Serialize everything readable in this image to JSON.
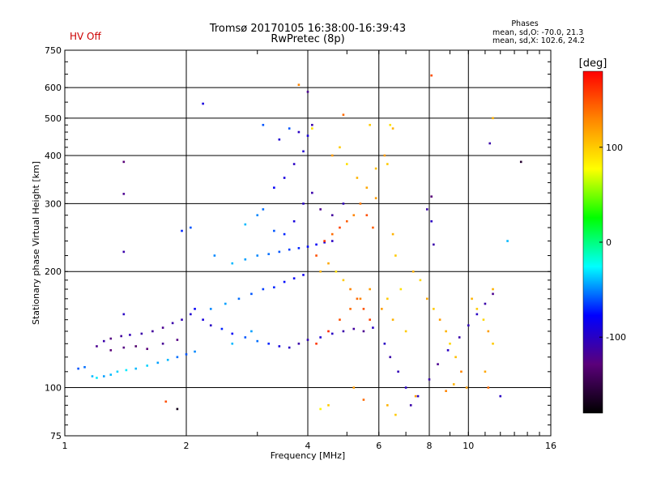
{
  "status_text": "HV Off",
  "status_color": "#cc0000",
  "chart_data": {
    "type": "scatter",
    "title": "Tromsø 20170105 16:38:00-16:39:43",
    "subtitle": "RwPretec (8p)",
    "stats": {
      "heading": "Phases",
      "line1": "mean, sd,O: -70.0, 21.3",
      "line2": "mean, sd,X: 102.6, 24.2"
    },
    "xlabel": "Frequency [MHz]",
    "ylabel": "Stationary phase Virtual Height [km]",
    "x_scale": "log",
    "y_scale": "log",
    "xlim": [
      1,
      16
    ],
    "ylim": [
      75,
      750
    ],
    "x_ticks": [
      1,
      2,
      4,
      6,
      8,
      10,
      16
    ],
    "x_tick_labels": [
      "1",
      "2",
      "4",
      "6",
      "8",
      "10",
      "16"
    ],
    "y_ticks": [
      75,
      100,
      200,
      300,
      400,
      500,
      600,
      750
    ],
    "y_tick_labels": [
      "75",
      "100",
      "200",
      "300",
      "400",
      "500",
      "600",
      "750"
    ],
    "grid": true,
    "colorbar": {
      "label": "[deg]",
      "range": [
        -180,
        180
      ],
      "ticks": [
        100,
        0,
        -100
      ],
      "tick_labels": [
        "100",
        "0",
        "-100"
      ],
      "colors": [
        "#000000",
        "#5a007a",
        "#0000ff",
        "#00ffff",
        "#00ff00",
        "#ffff00",
        "#ff8800",
        "#ff0000"
      ]
    },
    "series": [
      {
        "points": [
          [
            1.08,
            112,
            -60
          ],
          [
            1.12,
            113,
            -55
          ],
          [
            1.17,
            107,
            -40
          ],
          [
            1.2,
            106,
            -30
          ],
          [
            1.25,
            107,
            -45
          ],
          [
            1.3,
            108,
            -40
          ],
          [
            1.35,
            110,
            -35
          ],
          [
            1.42,
            111,
            -30
          ],
          [
            1.5,
            112,
            -40
          ],
          [
            1.6,
            114,
            -35
          ],
          [
            1.7,
            116,
            -45
          ],
          [
            1.8,
            118,
            -40
          ],
          [
            1.9,
            120,
            -55
          ],
          [
            2.0,
            122,
            -60
          ],
          [
            2.1,
            124,
            -50
          ],
          [
            1.2,
            128,
            -120
          ],
          [
            1.25,
            132,
            -110
          ],
          [
            1.3,
            134,
            -125
          ],
          [
            1.38,
            136,
            -115
          ],
          [
            1.45,
            137,
            -105
          ],
          [
            1.55,
            138,
            -110
          ],
          [
            1.65,
            140,
            -115
          ],
          [
            1.75,
            143,
            -120
          ],
          [
            1.85,
            147,
            -110
          ],
          [
            1.95,
            150,
            -105
          ],
          [
            2.05,
            155,
            -95
          ],
          [
            2.1,
            160,
            -80
          ],
          [
            1.3,
            125,
            -130
          ],
          [
            1.4,
            127,
            -125
          ],
          [
            1.5,
            128,
            -135
          ],
          [
            1.6,
            126,
            -128
          ],
          [
            1.75,
            130,
            -118
          ],
          [
            1.9,
            133,
            -125
          ],
          [
            2.2,
            150,
            -90
          ],
          [
            2.3,
            145,
            -100
          ],
          [
            2.45,
            142,
            -70
          ],
          [
            2.6,
            138,
            -80
          ],
          [
            2.8,
            135,
            -60
          ],
          [
            3.0,
            132,
            -55
          ],
          [
            3.2,
            130,
            -70
          ],
          [
            3.4,
            128,
            -90
          ],
          [
            3.6,
            127,
            -100
          ],
          [
            3.8,
            130,
            -110
          ],
          [
            4.0,
            133,
            -105
          ],
          [
            4.3,
            135,
            -95
          ],
          [
            4.6,
            138,
            -100
          ],
          [
            4.9,
            140,
            -110
          ],
          [
            5.2,
            142,
            -115
          ],
          [
            5.5,
            140,
            -120
          ],
          [
            5.8,
            143,
            -100
          ],
          [
            2.3,
            160,
            -50
          ],
          [
            2.5,
            165,
            -45
          ],
          [
            2.7,
            170,
            -55
          ],
          [
            2.9,
            175,
            -60
          ],
          [
            3.1,
            180,
            -65
          ],
          [
            3.3,
            182,
            -70
          ],
          [
            3.5,
            188,
            -75
          ],
          [
            3.7,
            192,
            -80
          ],
          [
            3.9,
            196,
            -85
          ],
          [
            2.6,
            210,
            -40
          ],
          [
            2.8,
            215,
            -45
          ],
          [
            3.0,
            220,
            -50
          ],
          [
            3.2,
            222,
            -55
          ],
          [
            3.4,
            225,
            -60
          ],
          [
            3.6,
            228,
            -65
          ],
          [
            3.8,
            230,
            -70
          ],
          [
            4.0,
            232,
            -75
          ],
          [
            4.2,
            235,
            -80
          ],
          [
            4.4,
            238,
            -90
          ],
          [
            4.6,
            240,
            -100
          ],
          [
            2.8,
            265,
            -40
          ],
          [
            3.0,
            280,
            -50
          ],
          [
            3.1,
            290,
            -55
          ],
          [
            3.3,
            255,
            -60
          ],
          [
            3.5,
            250,
            -70
          ],
          [
            3.7,
            270,
            -90
          ],
          [
            3.9,
            300,
            -100
          ],
          [
            4.1,
            320,
            -110
          ],
          [
            4.3,
            290,
            -120
          ],
          [
            4.6,
            280,
            -115
          ],
          [
            4.9,
            300,
            -105
          ],
          [
            3.3,
            330,
            -80
          ],
          [
            3.5,
            350,
            -90
          ],
          [
            3.7,
            380,
            -100
          ],
          [
            3.9,
            410,
            -95
          ],
          [
            4.0,
            450,
            -90
          ],
          [
            4.1,
            480,
            -110
          ],
          [
            3.4,
            440,
            -95
          ],
          [
            3.6,
            470,
            -60
          ],
          [
            3.8,
            460,
            -100
          ],
          [
            4.2,
            220,
            150
          ],
          [
            4.4,
            240,
            160
          ],
          [
            4.6,
            250,
            140
          ],
          [
            4.8,
            260,
            155
          ],
          [
            5.0,
            270,
            145
          ],
          [
            5.2,
            280,
            130
          ],
          [
            5.4,
            300,
            135
          ],
          [
            5.6,
            280,
            150
          ],
          [
            5.8,
            260,
            145
          ],
          [
            5.9,
            310,
            120
          ],
          [
            4.3,
            200,
            110
          ],
          [
            4.5,
            210,
            115
          ],
          [
            4.7,
            200,
            90
          ],
          [
            4.9,
            190,
            100
          ],
          [
            5.1,
            180,
            130
          ],
          [
            5.3,
            170,
            140
          ],
          [
            5.5,
            160,
            150
          ],
          [
            5.7,
            150,
            155
          ],
          [
            4.2,
            130,
            160
          ],
          [
            4.5,
            140,
            165
          ],
          [
            4.8,
            150,
            150
          ],
          [
            5.1,
            160,
            140
          ],
          [
            5.4,
            170,
            130
          ],
          [
            5.7,
            180,
            120
          ],
          [
            4.6,
            400,
            120
          ],
          [
            4.8,
            420,
            100
          ],
          [
            5.0,
            380,
            90
          ],
          [
            5.3,
            350,
            110
          ],
          [
            5.6,
            330,
            115
          ],
          [
            5.9,
            370,
            105
          ],
          [
            4.9,
            510,
            140
          ],
          [
            4.1,
            470,
            90
          ],
          [
            3.8,
            610,
            130
          ],
          [
            5.7,
            480,
            100
          ],
          [
            6.1,
            160,
            120
          ],
          [
            6.3,
            170,
            100
          ],
          [
            6.5,
            150,
            110
          ],
          [
            6.8,
            180,
            90
          ],
          [
            7.0,
            140,
            100
          ],
          [
            7.3,
            200,
            110
          ],
          [
            7.6,
            190,
            95
          ],
          [
            7.9,
            170,
            115
          ],
          [
            8.2,
            160,
            100
          ],
          [
            8.5,
            150,
            120
          ],
          [
            8.8,
            140,
            110
          ],
          [
            9.0,
            130,
            95
          ],
          [
            9.3,
            120,
            105
          ],
          [
            9.6,
            110,
            130
          ],
          [
            9.9,
            100,
            120
          ],
          [
            10.2,
            170,
            110
          ],
          [
            10.5,
            160,
            100
          ],
          [
            10.9,
            150,
            95
          ],
          [
            11.2,
            140,
            120
          ],
          [
            11.5,
            180,
            110
          ],
          [
            11.5,
            130,
            100
          ],
          [
            11.0,
            110,
            115
          ],
          [
            6.2,
            130,
            -100
          ],
          [
            6.4,
            120,
            -110
          ],
          [
            6.7,
            110,
            -105
          ],
          [
            7.0,
            100,
            -100
          ],
          [
            7.2,
            90,
            -110
          ],
          [
            7.5,
            95,
            -100
          ],
          [
            8.0,
            105,
            -110
          ],
          [
            8.4,
            115,
            -120
          ],
          [
            8.9,
            125,
            -100
          ],
          [
            9.5,
            135,
            -110
          ],
          [
            10.0,
            145,
            -105
          ],
          [
            10.5,
            155,
            -100
          ],
          [
            11.0,
            165,
            -110
          ],
          [
            11.5,
            175,
            -120
          ],
          [
            6.3,
            90,
            110
          ],
          [
            6.6,
            85,
            100
          ],
          [
            7.4,
            95,
            120
          ],
          [
            8.8,
            98,
            130
          ],
          [
            9.2,
            102,
            110
          ],
          [
            11.2,
            100,
            140
          ],
          [
            5.5,
            93,
            140
          ],
          [
            4.5,
            90,
            100
          ],
          [
            4.3,
            88,
            80
          ],
          [
            5.2,
            100,
            120
          ],
          [
            8.1,
            645,
            150
          ],
          [
            8.1,
            313,
            -130
          ],
          [
            7.9,
            290,
            -110
          ],
          [
            8.1,
            270,
            -100
          ],
          [
            8.2,
            235,
            -110
          ],
          [
            6.4,
            480,
            90
          ],
          [
            6.5,
            470,
            110
          ],
          [
            6.2,
            400,
            120
          ],
          [
            6.3,
            380,
            100
          ],
          [
            6.5,
            250,
            110
          ],
          [
            6.6,
            220,
            100
          ],
          [
            1.4,
            385,
            -130
          ],
          [
            1.4,
            318,
            -120
          ],
          [
            1.4,
            225,
            -110
          ],
          [
            1.4,
            155,
            -100
          ],
          [
            2.2,
            545,
            -90
          ],
          [
            3.1,
            480,
            -60
          ],
          [
            4.0,
            585,
            -120
          ],
          [
            1.78,
            92,
            150
          ],
          [
            1.9,
            88,
            -170
          ],
          [
            1.95,
            255,
            -70
          ],
          [
            2.05,
            260,
            -60
          ],
          [
            2.35,
            220,
            -50
          ],
          [
            2.6,
            130,
            -40
          ],
          [
            2.9,
            140,
            -45
          ],
          [
            13.5,
            385,
            -160
          ],
          [
            12.5,
            240,
            -40
          ],
          [
            11.5,
            500,
            110
          ],
          [
            11.3,
            430,
            -110
          ],
          [
            12.0,
            95,
            -100
          ]
        ]
      }
    ]
  }
}
